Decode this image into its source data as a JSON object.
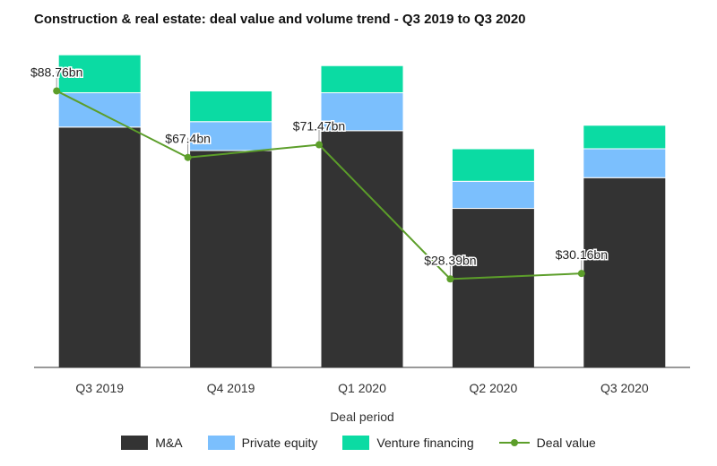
{
  "chart_data": {
    "type": "bar",
    "stacked": true,
    "title": "Construction & real estate: deal value and volume trend - Q3 2019 to Q3 2020",
    "xlabel": "Deal period",
    "ylabel": "",
    "categories": [
      "Q3 2019",
      "Q4 2019",
      "Q1 2020",
      "Q2 2020",
      "Q3 2020"
    ],
    "bar_ylim": [
      0,
      905
    ],
    "series": [
      {
        "name": "M&A",
        "color": "#333333",
        "values": [
          665,
          600,
          655,
          440,
          525
        ]
      },
      {
        "name": "Private equity",
        "color": "#7bbffd",
        "values": [
          95,
          80,
          105,
          75,
          80
        ]
      },
      {
        "name": "Venture financing",
        "color": "#0bdba3",
        "values": [
          105,
          85,
          75,
          90,
          65
        ]
      }
    ],
    "line_series": {
      "name": "Deal value",
      "color": "#5c9e2a",
      "values": [
        88.76,
        67.4,
        71.47,
        28.39,
        30.16
      ],
      "labels": [
        "$88.76bn",
        "$67.4bn",
        "$71.47bn",
        "$28.39bn",
        "$30.16bn"
      ],
      "ylim": [
        0,
        105
      ]
    },
    "grid": false,
    "legend_position": "bottom"
  }
}
